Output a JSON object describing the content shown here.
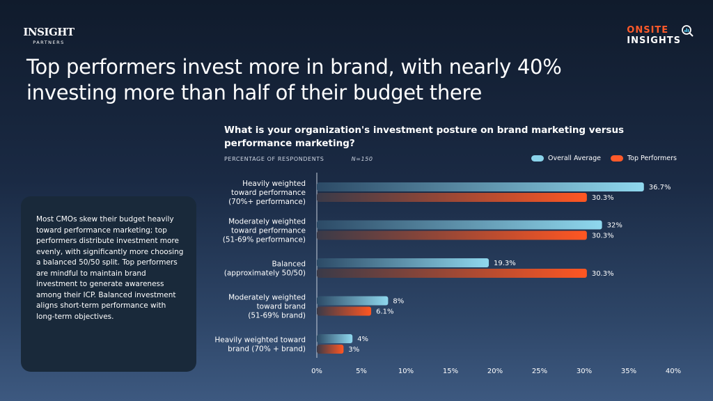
{
  "logo_left": {
    "main": "INSIGHT",
    "sub": "PARTNERS"
  },
  "logo_right": {
    "line1": "ONSITE",
    "line2": "INSIGHTS",
    "icon": "magnifier-chart-icon"
  },
  "headline": "Top performers invest more in brand, with nearly 40% investing more than half of their budget there",
  "insight_text": "Most CMOs skew their budget heavily toward performance marketing; top performers distribute investment more evenly, with significantly more choosing a balanced 50/50 split. Top performers are mindful to maintain brand investment to generate awareness among their ICP. Balanced investment aligns short-term performance with long-term objectives.",
  "chart_data": {
    "type": "bar",
    "orientation": "horizontal",
    "title": "What is your organization's investment posture on brand marketing versus performance marketing?",
    "subtitle": "PERCENTAGE OF RESPONDENTS",
    "sample_size": "N=150",
    "categories": [
      [
        "Heavily weighted",
        "toward performance",
        "(70%+ performance)"
      ],
      [
        "Moderately weighted",
        "toward performance",
        "(51-69% performance)"
      ],
      [
        "Balanced",
        "(approximately 50/50)"
      ],
      [
        "Moderately weighted",
        "toward brand",
        "(51-69% brand)"
      ],
      [
        "Heavily weighted toward",
        "brand (70% + brand)"
      ]
    ],
    "series": [
      {
        "name": "Overall Average",
        "color": "#8ad3ea",
        "values": [
          36.7,
          32,
          19.3,
          8,
          4
        ],
        "labels": [
          "36.7%",
          "32%",
          "19.3%",
          "8%",
          "4%"
        ]
      },
      {
        "name": "Top Performers",
        "color": "#ff5a2a",
        "values": [
          30.3,
          30.3,
          30.3,
          6.1,
          3
        ],
        "labels": [
          "30.3%",
          "30.3%",
          "30.3%",
          "6.1%",
          "3%"
        ]
      }
    ],
    "xlim": [
      0,
      40
    ],
    "ticks": [
      0,
      5,
      10,
      15,
      20,
      25,
      30,
      35,
      40
    ],
    "tick_labels": [
      "0%",
      "5%",
      "10%",
      "15%",
      "20%",
      "25%",
      "30%",
      "35%",
      "40%"
    ],
    "legend_position": "top-right",
    "grid": false
  }
}
